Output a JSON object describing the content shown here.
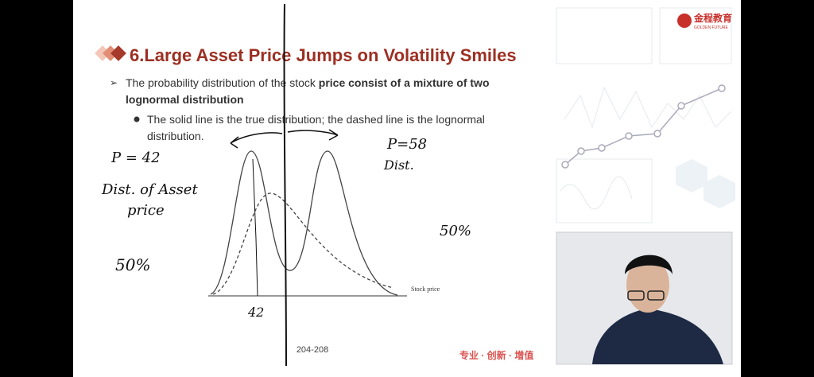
{
  "slide": {
    "title": "6.Large Asset Price Jumps on Volatility Smiles",
    "bullets": [
      {
        "text": "The probability distribution of the stock ",
        "bold": "price consist of a mixture of two",
        "bold2": "lognormal distribution"
      },
      {
        "text": "The solid line is the true distribution; the dashed line is the lognormal",
        "text2": "distribution."
      }
    ],
    "axis_label": "Stock price",
    "page_number": "204-208",
    "slogan": "专业 · 创新 · 增值",
    "logo": {
      "name": "金程教育",
      "subtitle": "GOLDEN FUTURE"
    }
  },
  "handwriting": {
    "left_p": "P = 42",
    "left_note_1": "Dist. of Asset",
    "left_note_2": "price",
    "left_pct": "50%",
    "right_p": "P=58",
    "right_note": "Dist.",
    "right_pct": "50%",
    "tick": "42"
  }
}
